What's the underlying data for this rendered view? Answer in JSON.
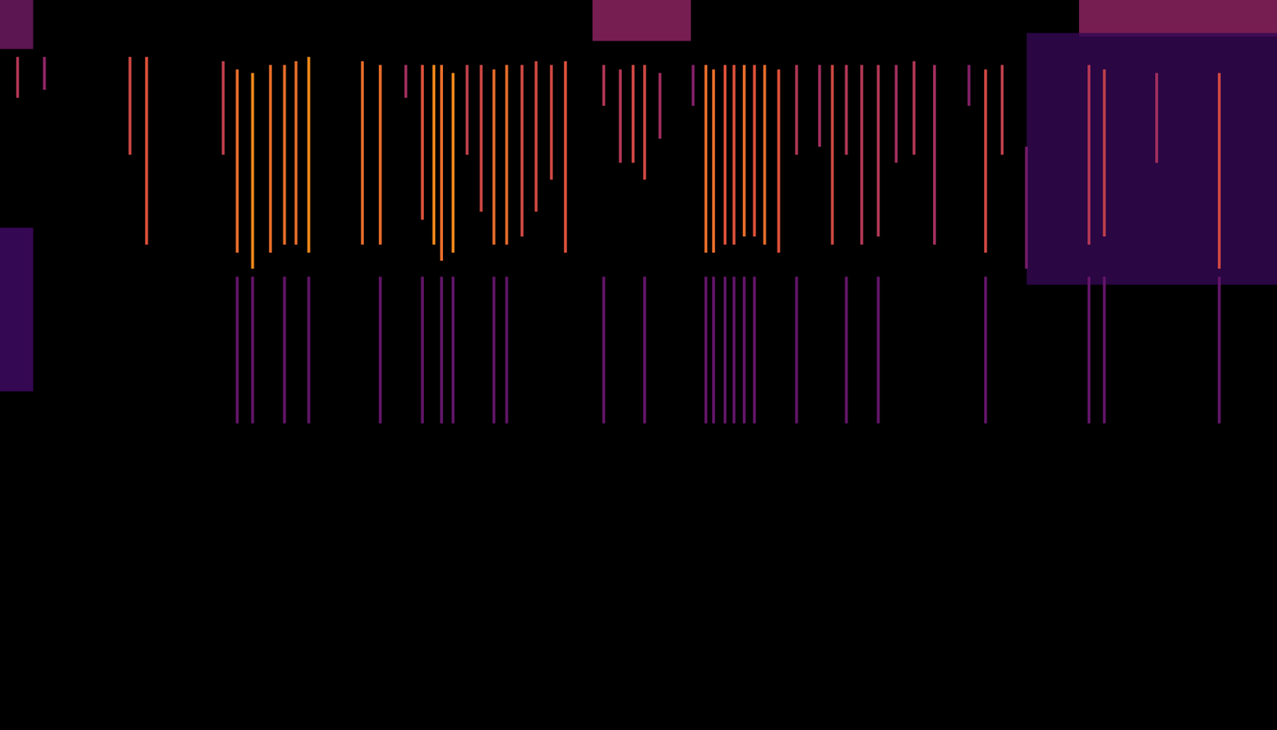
{
  "chart_data": {
    "type": "spectrogram",
    "xlim": [
      0,
      100
    ],
    "ylim": [
      0,
      100
    ],
    "tick_labels": false,
    "grid": false,
    "color_range": [
      0,
      1
    ],
    "clicks": [
      {
        "t": 1.4,
        "lo": 86.6,
        "hi": 92.2,
        "intensity": 0.6
      },
      {
        "t": 3.5,
        "lo": 87.7,
        "hi": 92.2,
        "intensity": 0.5
      },
      {
        "t": 10.2,
        "lo": 78.8,
        "hi": 92.2,
        "intensity": 0.7
      },
      {
        "t": 11.5,
        "lo": 66.5,
        "hi": 92.2,
        "intensity": 0.75
      },
      {
        "t": 17.5,
        "lo": 78.8,
        "hi": 91.6,
        "intensity": 0.65
      },
      {
        "t": 18.6,
        "lo": 65.4,
        "hi": 90.5,
        "intensity": 0.8
      },
      {
        "t": 19.8,
        "lo": 63.2,
        "hi": 90.0,
        "intensity": 0.85
      },
      {
        "t": 21.2,
        "lo": 65.4,
        "hi": 91.1,
        "intensity": 0.8
      },
      {
        "t": 22.3,
        "lo": 66.5,
        "hi": 91.1,
        "intensity": 0.8
      },
      {
        "t": 23.2,
        "lo": 66.5,
        "hi": 91.6,
        "intensity": 0.8
      },
      {
        "t": 24.2,
        "lo": 65.4,
        "hi": 92.2,
        "intensity": 0.85
      },
      {
        "t": 28.4,
        "lo": 66.5,
        "hi": 91.6,
        "intensity": 0.8
      },
      {
        "t": 29.8,
        "lo": 66.5,
        "hi": 91.1,
        "intensity": 0.8
      },
      {
        "t": 31.8,
        "lo": 86.6,
        "hi": 91.1,
        "intensity": 0.55
      },
      {
        "t": 33.1,
        "lo": 69.9,
        "hi": 91.1,
        "intensity": 0.75
      },
      {
        "t": 34.0,
        "lo": 66.5,
        "hi": 91.1,
        "intensity": 0.85
      },
      {
        "t": 34.6,
        "lo": 64.3,
        "hi": 91.1,
        "intensity": 0.8
      },
      {
        "t": 35.5,
        "lo": 65.4,
        "hi": 90.0,
        "intensity": 0.85
      },
      {
        "t": 36.6,
        "lo": 78.8,
        "hi": 91.1,
        "intensity": 0.65
      },
      {
        "t": 37.7,
        "lo": 71.0,
        "hi": 91.1,
        "intensity": 0.7
      },
      {
        "t": 38.7,
        "lo": 66.5,
        "hi": 90.5,
        "intensity": 0.8
      },
      {
        "t": 39.7,
        "lo": 66.5,
        "hi": 91.1,
        "intensity": 0.8
      },
      {
        "t": 40.9,
        "lo": 67.6,
        "hi": 91.1,
        "intensity": 0.7
      },
      {
        "t": 42.0,
        "lo": 71.0,
        "hi": 91.6,
        "intensity": 0.7
      },
      {
        "t": 43.2,
        "lo": 75.4,
        "hi": 91.1,
        "intensity": 0.7
      },
      {
        "t": 44.3,
        "lo": 65.4,
        "hi": 91.6,
        "intensity": 0.75
      },
      {
        "t": 47.3,
        "lo": 85.5,
        "hi": 91.1,
        "intensity": 0.6
      },
      {
        "t": 48.6,
        "lo": 77.7,
        "hi": 90.5,
        "intensity": 0.6
      },
      {
        "t": 49.6,
        "lo": 77.7,
        "hi": 91.1,
        "intensity": 0.7
      },
      {
        "t": 50.5,
        "lo": 75.4,
        "hi": 91.1,
        "intensity": 0.7
      },
      {
        "t": 51.7,
        "lo": 81.0,
        "hi": 90.0,
        "intensity": 0.55
      },
      {
        "t": 54.3,
        "lo": 85.5,
        "hi": 91.1,
        "intensity": 0.45
      },
      {
        "t": 55.3,
        "lo": 65.4,
        "hi": 91.1,
        "intensity": 0.8
      },
      {
        "t": 55.9,
        "lo": 65.4,
        "hi": 90.5,
        "intensity": 0.8
      },
      {
        "t": 56.8,
        "lo": 66.5,
        "hi": 91.1,
        "intensity": 0.75
      },
      {
        "t": 57.5,
        "lo": 66.5,
        "hi": 91.1,
        "intensity": 0.75
      },
      {
        "t": 58.3,
        "lo": 67.6,
        "hi": 91.1,
        "intensity": 0.8
      },
      {
        "t": 59.1,
        "lo": 67.6,
        "hi": 91.1,
        "intensity": 0.75
      },
      {
        "t": 59.9,
        "lo": 66.5,
        "hi": 91.1,
        "intensity": 0.8
      },
      {
        "t": 61.0,
        "lo": 65.4,
        "hi": 90.5,
        "intensity": 0.75
      },
      {
        "t": 62.4,
        "lo": 78.8,
        "hi": 91.1,
        "intensity": 0.6
      },
      {
        "t": 64.2,
        "lo": 79.9,
        "hi": 91.1,
        "intensity": 0.55
      },
      {
        "t": 65.2,
        "lo": 66.5,
        "hi": 91.1,
        "intensity": 0.7
      },
      {
        "t": 66.3,
        "lo": 78.8,
        "hi": 91.1,
        "intensity": 0.6
      },
      {
        "t": 67.5,
        "lo": 66.5,
        "hi": 91.1,
        "intensity": 0.6
      },
      {
        "t": 68.8,
        "lo": 67.6,
        "hi": 91.1,
        "intensity": 0.6
      },
      {
        "t": 70.2,
        "lo": 77.7,
        "hi": 91.1,
        "intensity": 0.55
      },
      {
        "t": 71.6,
        "lo": 78.8,
        "hi": 91.6,
        "intensity": 0.6
      },
      {
        "t": 73.2,
        "lo": 66.5,
        "hi": 91.1,
        "intensity": 0.55
      },
      {
        "t": 75.9,
        "lo": 85.5,
        "hi": 91.1,
        "intensity": 0.45
      },
      {
        "t": 77.2,
        "lo": 65.4,
        "hi": 90.5,
        "intensity": 0.7
      },
      {
        "t": 78.5,
        "lo": 78.8,
        "hi": 91.1,
        "intensity": 0.65
      },
      {
        "t": 80.4,
        "lo": 63.2,
        "hi": 79.9,
        "intensity": 0.4
      },
      {
        "t": 85.3,
        "lo": 66.5,
        "hi": 91.1,
        "intensity": 0.6
      },
      {
        "t": 86.5,
        "lo": 67.6,
        "hi": 90.5,
        "intensity": 0.65
      },
      {
        "t": 90.6,
        "lo": 77.7,
        "hi": 90.0,
        "intensity": 0.55
      },
      {
        "t": 95.5,
        "lo": 63.2,
        "hi": 90.0,
        "intensity": 0.7
      }
    ],
    "lower_band": [
      {
        "t": 18.6,
        "lo": 42.0,
        "hi": 62.1,
        "intensity": 0.35
      },
      {
        "t": 19.8,
        "lo": 42.0,
        "hi": 62.1,
        "intensity": 0.35
      },
      {
        "t": 22.3,
        "lo": 42.0,
        "hi": 62.1,
        "intensity": 0.35
      },
      {
        "t": 24.2,
        "lo": 42.0,
        "hi": 62.1,
        "intensity": 0.35
      },
      {
        "t": 29.8,
        "lo": 42.0,
        "hi": 62.1,
        "intensity": 0.35
      },
      {
        "t": 33.1,
        "lo": 42.0,
        "hi": 62.1,
        "intensity": 0.35
      },
      {
        "t": 34.6,
        "lo": 42.0,
        "hi": 62.1,
        "intensity": 0.35
      },
      {
        "t": 35.5,
        "lo": 42.0,
        "hi": 62.1,
        "intensity": 0.35
      },
      {
        "t": 38.7,
        "lo": 42.0,
        "hi": 62.1,
        "intensity": 0.35
      },
      {
        "t": 39.7,
        "lo": 42.0,
        "hi": 62.1,
        "intensity": 0.35
      },
      {
        "t": 47.3,
        "lo": 42.0,
        "hi": 62.1,
        "intensity": 0.35
      },
      {
        "t": 50.5,
        "lo": 42.0,
        "hi": 62.1,
        "intensity": 0.35
      },
      {
        "t": 55.3,
        "lo": 42.0,
        "hi": 62.1,
        "intensity": 0.35
      },
      {
        "t": 55.9,
        "lo": 42.0,
        "hi": 62.1,
        "intensity": 0.35
      },
      {
        "t": 56.8,
        "lo": 42.0,
        "hi": 62.1,
        "intensity": 0.35
      },
      {
        "t": 57.5,
        "lo": 42.0,
        "hi": 62.1,
        "intensity": 0.35
      },
      {
        "t": 58.3,
        "lo": 42.0,
        "hi": 62.1,
        "intensity": 0.35
      },
      {
        "t": 59.1,
        "lo": 42.0,
        "hi": 62.1,
        "intensity": 0.35
      },
      {
        "t": 62.4,
        "lo": 42.0,
        "hi": 62.1,
        "intensity": 0.35
      },
      {
        "t": 66.3,
        "lo": 42.0,
        "hi": 62.1,
        "intensity": 0.35
      },
      {
        "t": 68.8,
        "lo": 42.0,
        "hi": 62.1,
        "intensity": 0.35
      },
      {
        "t": 77.2,
        "lo": 42.0,
        "hi": 62.1,
        "intensity": 0.35
      },
      {
        "t": 85.3,
        "lo": 42.0,
        "hi": 62.1,
        "intensity": 0.35
      },
      {
        "t": 86.5,
        "lo": 42.0,
        "hi": 62.1,
        "intensity": 0.35
      },
      {
        "t": 95.5,
        "lo": 42.0,
        "hi": 62.1,
        "intensity": 0.35
      }
    ],
    "patches": [
      {
        "t0": 46.4,
        "t1": 54.1,
        "f0": 94.4,
        "f1": 100,
        "intensity": 0.5
      },
      {
        "t0": 84.5,
        "t1": 100,
        "f0": 95.0,
        "f1": 100,
        "intensity": 0.5
      },
      {
        "t0": 0,
        "t1": 2.6,
        "f0": 93.3,
        "f1": 100,
        "intensity": 0.4
      },
      {
        "t0": 0,
        "t1": 2.6,
        "f0": 46.4,
        "f1": 68.8,
        "intensity": 0.25
      },
      {
        "t0": 80.4,
        "t1": 100,
        "f0": 61.0,
        "f1": 95.5,
        "intensity": 0.2
      }
    ]
  }
}
